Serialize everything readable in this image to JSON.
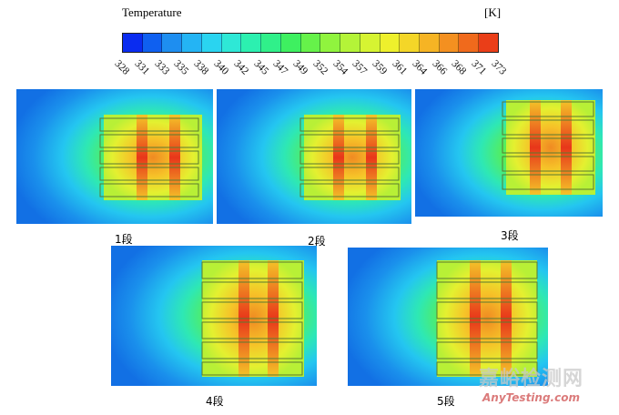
{
  "legend": {
    "title": "Temperature",
    "unit": "[K]",
    "ticks": [
      "328",
      "331",
      "333",
      "335",
      "338",
      "340",
      "342",
      "345",
      "347",
      "349",
      "352",
      "354",
      "357",
      "359",
      "361",
      "364",
      "366",
      "368",
      "371",
      "373"
    ],
    "colors": [
      "#0a2cf0",
      "#0f60f0",
      "#1e8ef0",
      "#24b4f4",
      "#2ad4f0",
      "#2ee8d6",
      "#2cf0b0",
      "#30f08a",
      "#3ef060",
      "#66f24a",
      "#90f43e",
      "#b4f438",
      "#d6f432",
      "#eef02c",
      "#f4d628",
      "#f6b424",
      "#f49020",
      "#f06a1c",
      "#ea3e18"
    ]
  },
  "panels": [
    {
      "caption": "1段"
    },
    {
      "caption": "2段"
    },
    {
      "caption": "3段"
    },
    {
      "caption": "4段"
    },
    {
      "caption": "5段"
    }
  ],
  "watermark": {
    "cn": "嘉峪检测网",
    "en": "AnyTesting.com"
  }
}
